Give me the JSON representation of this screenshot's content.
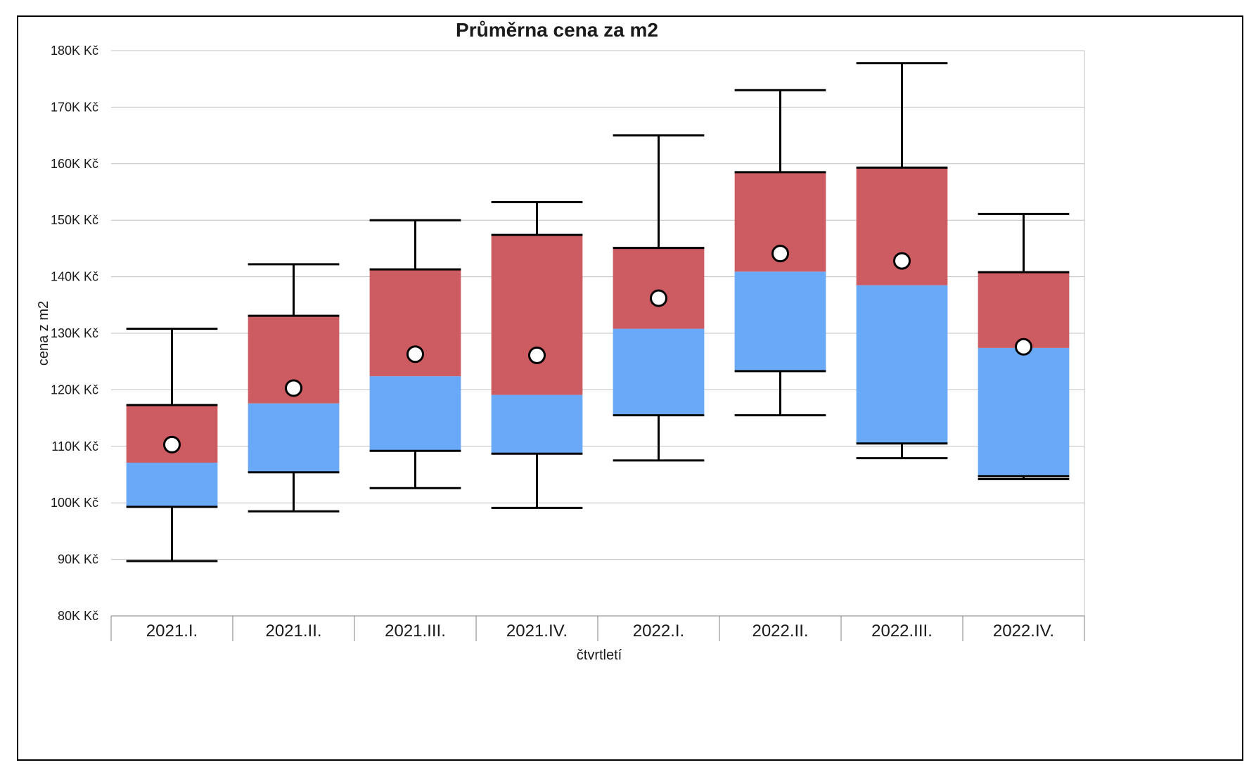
{
  "chart_data": {
    "type": "box",
    "title": "Průměrna cena za m2",
    "xlabel": "čtvrtletí",
    "ylabel": "cena z m2",
    "ylim": [
      80000,
      180000
    ],
    "y_ticks": [
      {
        "value": 80000,
        "label": "80K Kč"
      },
      {
        "value": 90000,
        "label": "90K Kč"
      },
      {
        "value": 100000,
        "label": "100K Kč"
      },
      {
        "value": 110000,
        "label": "110K Kč"
      },
      {
        "value": 120000,
        "label": "120K Kč"
      },
      {
        "value": 130000,
        "label": "130K Kč"
      },
      {
        "value": 140000,
        "label": "140K Kč"
      },
      {
        "value": 150000,
        "label": "150K Kč"
      },
      {
        "value": 160000,
        "label": "160K Kč"
      },
      {
        "value": 170000,
        "label": "170K Kč"
      },
      {
        "value": 180000,
        "label": "180K Kč"
      }
    ],
    "grid": true,
    "colors": {
      "lower_box": "#6aa9f7",
      "upper_box": "#cd5c62",
      "mean_marker": "#ffffff",
      "whisker": "#000000",
      "grid": "#c0c0c0"
    },
    "categories": [
      "2021.I.",
      "2021.II.",
      "2021.III.",
      "2021.IV.",
      "2022.I.",
      "2022.II.",
      "2022.III.",
      "2022.IV."
    ],
    "boxes": [
      {
        "min": 89700,
        "q1": 99300,
        "median": 107100,
        "q3": 117300,
        "max": 130800,
        "mean": 110300
      },
      {
        "min": 98500,
        "q1": 105400,
        "median": 117600,
        "q3": 133100,
        "max": 142200,
        "mean": 120300
      },
      {
        "min": 102600,
        "q1": 109200,
        "median": 122400,
        "q3": 141300,
        "max": 150000,
        "mean": 126300
      },
      {
        "min": 99100,
        "q1": 108700,
        "median": 119100,
        "q3": 147400,
        "max": 153200,
        "mean": 126100
      },
      {
        "min": 107500,
        "q1": 115500,
        "median": 130800,
        "q3": 145100,
        "max": 165000,
        "mean": 136200
      },
      {
        "min": 115500,
        "q1": 123300,
        "median": 140900,
        "q3": 158500,
        "max": 173000,
        "mean": 144100
      },
      {
        "min": 107900,
        "q1": 110500,
        "median": 138500,
        "q3": 159300,
        "max": 177800,
        "mean": 142800
      },
      {
        "min": 104200,
        "q1": 104700,
        "median": 127400,
        "q3": 140800,
        "max": 151100,
        "mean": 127600
      }
    ]
  }
}
